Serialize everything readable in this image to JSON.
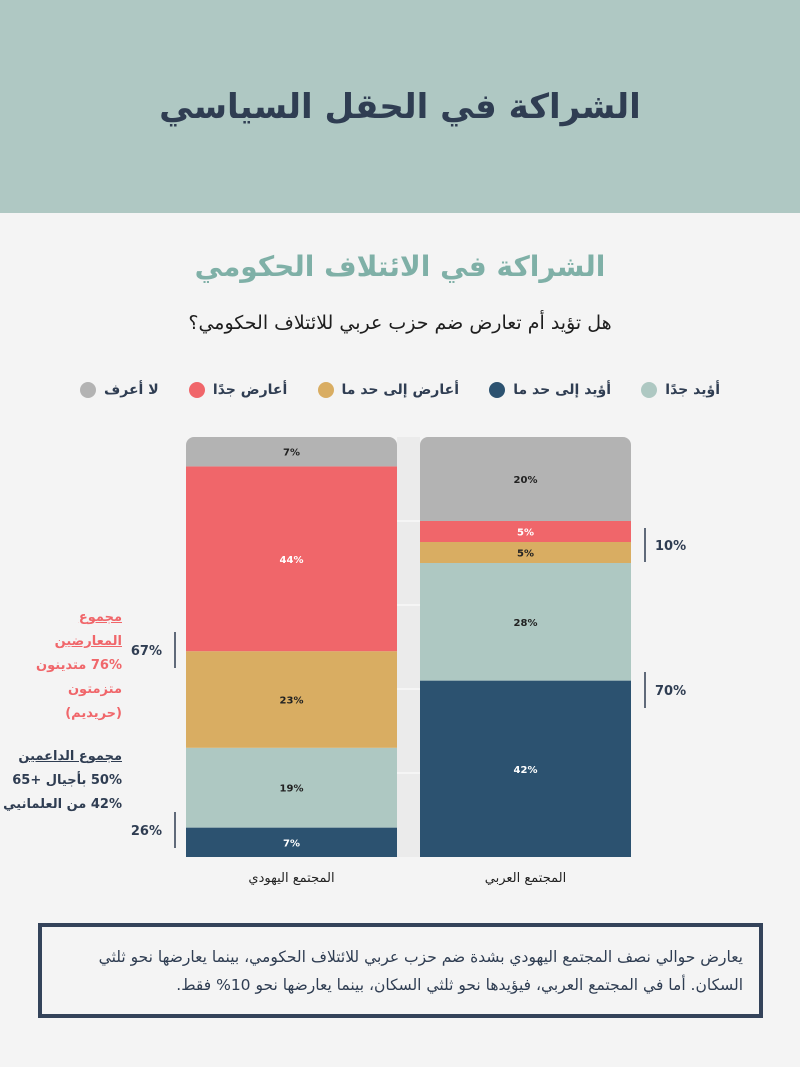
{
  "header": {
    "title": "الشراكة في الحقل السياسي"
  },
  "section_title": "الشراكة في الائتلاف الحكومي",
  "question": "هل تؤيد أم تعارض ضم حزب عربي للائتلاف الحكومي؟",
  "chart_data": {
    "type": "bar",
    "stacked": true,
    "categories": [
      "المجتمع اليهودي",
      "المجتمع العربي"
    ],
    "ylim": [
      0,
      100
    ],
    "legend_position": "top",
    "series": [
      {
        "name": "أؤيد إلى حد ما",
        "color": "#2c5270",
        "values": [
          7,
          42
        ]
      },
      {
        "name": "أؤيد جدًا",
        "color": "#aec8c2",
        "values": [
          19,
          28
        ]
      },
      {
        "name": "أعارض إلى حد ما",
        "color": "#d9ad62",
        "values": [
          23,
          5
        ]
      },
      {
        "name": "أعارض جدًا",
        "color": "#f0666a",
        "values": [
          44,
          5
        ]
      },
      {
        "name": "لا أعرف",
        "color": "#b3b3b3",
        "values": [
          7,
          20
        ]
      }
    ],
    "legend_order": [
      "لا أعرف",
      "أعارض جدًا",
      "أعارض إلى حد ما",
      "أؤيد إلى حد ما",
      "أؤيد جدًا"
    ],
    "annotations": {
      "jewish_oppose_total": "67%",
      "jewish_support_total": "26%",
      "arab_oppose_total": "10%",
      "arab_support_total": "70%"
    }
  },
  "notes": {
    "oppose_title": "مجموع المعارضين",
    "oppose_detail": "76% متدينون متزمتون (حريديم)",
    "support_title": "مجموع الداعمين",
    "support_detail_1": "50% بأجيال +65",
    "support_detail_2": "42% من العلمانيي"
  },
  "summary": "يعارض حوالي نصف المجتمع اليهودي بشدة ضم حزب عربي للائتلاف الحكومي، بينما يعارضها نحو ثلثي السكان. أما في المجتمع العربي، فيؤيدها نحو ثلثي السكان، بينما يعارضها نحو 10% فقط."
}
